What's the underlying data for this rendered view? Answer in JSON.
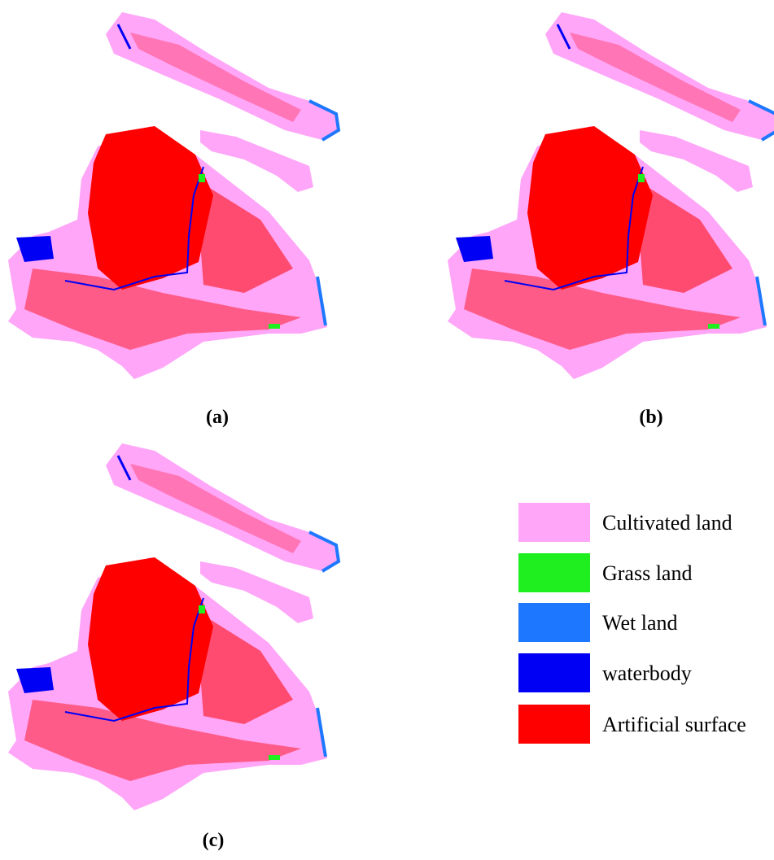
{
  "panels": [
    {
      "label": "(a)"
    },
    {
      "label": "(b)"
    },
    {
      "label": "(c)"
    }
  ],
  "legend": [
    {
      "label": "Cultivated land",
      "color": "#ffa6f8"
    },
    {
      "label": "Grass land",
      "color": "#1fef1f"
    },
    {
      "label": "Wet land",
      "color": "#1e78ff"
    },
    {
      "label": "waterbody",
      "color": "#0000f5"
    },
    {
      "label": "Artificial surface",
      "color": "#ff0000"
    }
  ]
}
